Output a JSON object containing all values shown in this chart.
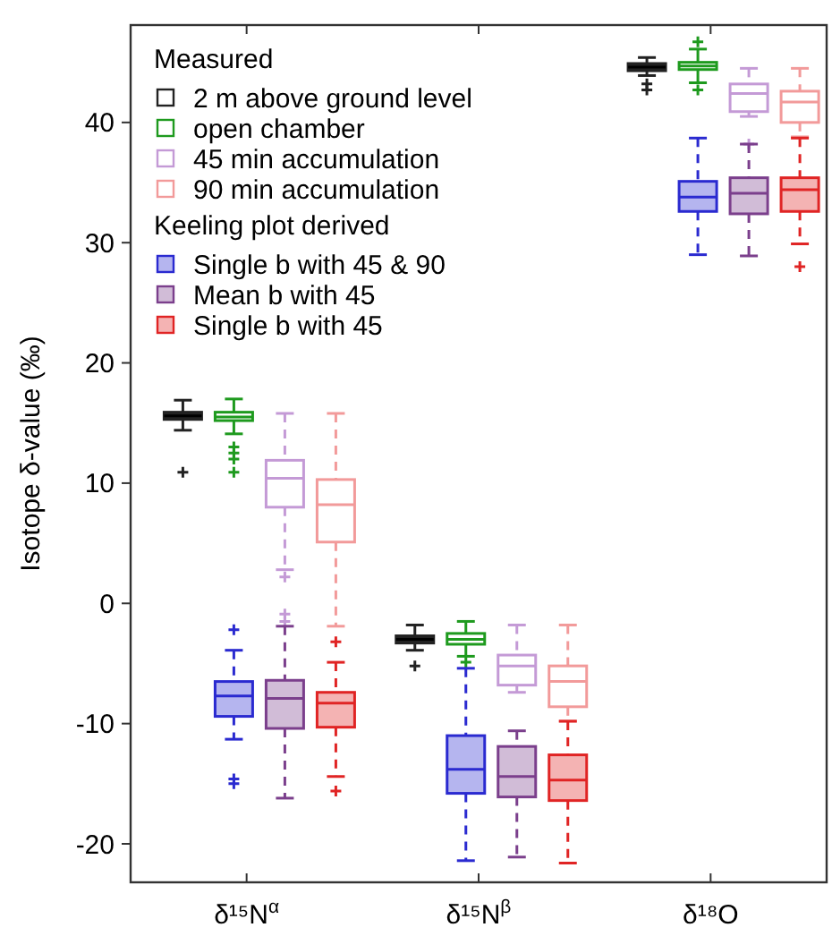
{
  "chart_data": {
    "type": "box",
    "ylabel": "Isotope δ-value (‰)",
    "categories": [
      "δ¹⁵N$^{α}$",
      "δ¹⁵N$^{β}$",
      "δ¹⁸O"
    ],
    "ylim": [
      -23.2,
      48.1
    ],
    "yticks": [
      -20,
      -10,
      0,
      10,
      20,
      30,
      40
    ],
    "legend": "top left",
    "legend_title": "Measured",
    "annotations": [
      "Keeling plot derived"
    ],
    "series": [
      {
        "name": "2 m above ground level",
        "color": "#222222",
        "boxes": [
          {
            "low": 14.4,
            "q1": 15.3,
            "median": 15.6,
            "q3": 15.9,
            "high": 16.9,
            "outliers": [
              10.9
            ]
          },
          {
            "low": -3.9,
            "q1": -3.3,
            "median": -3.0,
            "q3": -2.7,
            "high": -1.8,
            "outliers": [
              -5.2
            ]
          },
          {
            "low": 43.9,
            "q1": 44.3,
            "median": 44.6,
            "q3": 44.9,
            "high": 45.4,
            "outliers": [
              43.2,
              42.7
            ]
          }
        ]
      },
      {
        "name": "open chamber",
        "color": "#1e9a1e",
        "boxes": [
          {
            "low": 14.1,
            "q1": 15.2,
            "median": 15.5,
            "q3": 15.9,
            "high": 17.0,
            "outliers": [
              13.0,
              12.5,
              12.0,
              10.9
            ]
          },
          {
            "low": -4.4,
            "q1": -3.4,
            "median": -3.0,
            "q3": -2.5,
            "high": -1.5,
            "outliers": [
              -4.9
            ]
          },
          {
            "low": 43.3,
            "q1": 44.4,
            "median": 44.7,
            "q3": 45.0,
            "high": 46.1,
            "outliers": [
              46.7,
              42.7
            ]
          }
        ]
      },
      {
        "name": "45 min accumulation",
        "color": "#c49ad6",
        "line_style": "dashed",
        "boxes": [
          {
            "low": 2.8,
            "q1": 8.0,
            "median": 10.4,
            "q3": 11.9,
            "high": 15.8,
            "outliers": [
              2.2,
              -0.9,
              -1.5
            ]
          },
          {
            "low": -7.4,
            "q1": -6.8,
            "median": -5.2,
            "q3": -4.3,
            "high": -1.8
          },
          {
            "low": 40.5,
            "q1": 40.9,
            "median": 42.4,
            "q3": 43.2,
            "high": 44.5,
            "outliers": [
              38.2
            ]
          }
        ]
      },
      {
        "name": "90 min accumulation",
        "color": "#f29a9a",
        "line_style": "dashed",
        "boxes": [
          {
            "low": -1.9,
            "q1": 5.1,
            "median": 8.2,
            "q3": 10.3,
            "high": 15.8
          },
          {
            "low": -9.8,
            "q1": -8.6,
            "median": -6.5,
            "q3": -5.2,
            "high": -1.8
          },
          {
            "low": 38.8,
            "q1": 40.0,
            "median": 41.7,
            "q3": 42.6,
            "high": 44.5
          }
        ]
      },
      {
        "name": "Single b with 45 & 90",
        "color": "#2a2ad0",
        "line_style": "dashed",
        "boxes": [
          {
            "low": -11.3,
            "q1": -9.4,
            "median": -7.7,
            "q3": -6.5,
            "high": -3.9,
            "outliers": [
              -2.2,
              -14.6,
              -15.0
            ]
          },
          {
            "low": -21.4,
            "q1": -15.8,
            "median": -13.8,
            "q3": -11.0,
            "high": -5.4
          },
          {
            "low": 29.0,
            "q1": 32.6,
            "median": 33.8,
            "q3": 35.1,
            "high": 38.7
          }
        ]
      },
      {
        "name": "Mean b with 45",
        "color": "#7b3f8c",
        "line_style": "dashed",
        "boxes": [
          {
            "low": -16.2,
            "q1": -10.4,
            "median": -7.9,
            "q3": -6.4,
            "high": -1.9
          },
          {
            "low": -21.1,
            "q1": -16.1,
            "median": -14.4,
            "q3": -11.9,
            "high": -10.6
          },
          {
            "low": 28.9,
            "q1": 32.4,
            "median": 34.1,
            "q3": 35.4,
            "high": 38.2
          }
        ]
      },
      {
        "name": "Single b with 45",
        "color": "#e02424",
        "line_style": "dashed",
        "boxes": [
          {
            "low": -14.4,
            "q1": -10.3,
            "median": -8.3,
            "q3": -7.4,
            "high": -4.9,
            "outliers": [
              -3.2,
              -15.6
            ]
          },
          {
            "low": -21.6,
            "q1": -16.4,
            "median": -14.7,
            "q3": -12.6,
            "high": -9.8
          },
          {
            "low": 29.9,
            "q1": 32.6,
            "median": 34.4,
            "q3": 35.4,
            "high": 38.7,
            "outliers": [
              28.0
            ]
          }
        ]
      }
    ]
  }
}
